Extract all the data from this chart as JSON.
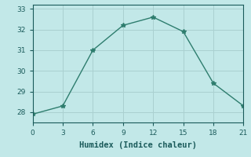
{
  "x": [
    0,
    3,
    6,
    9,
    12,
    15,
    18,
    21
  ],
  "y": [
    27.9,
    28.3,
    31.0,
    32.2,
    32.6,
    31.9,
    29.4,
    28.3
  ],
  "line_color": "#2e7d6e",
  "marker": "*",
  "marker_size": 4,
  "bg_color": "#c2e8e8",
  "grid_color": "#aad0d0",
  "xlabel": "Humidex (Indice chaleur)",
  "xlabel_fontsize": 7.5,
  "xlabel_color": "#1a5a5a",
  "tick_color": "#1a5a5a",
  "xlim": [
    0,
    21
  ],
  "ylim": [
    27.5,
    33.2
  ],
  "xticks": [
    0,
    3,
    6,
    9,
    12,
    15,
    18,
    21
  ],
  "yticks": [
    28,
    29,
    30,
    31,
    32,
    33
  ]
}
